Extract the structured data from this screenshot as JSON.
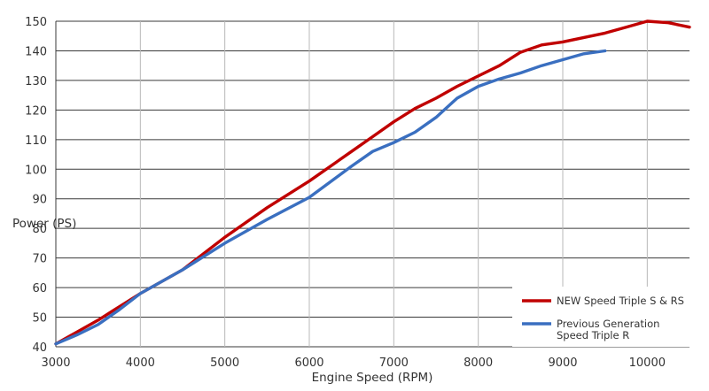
{
  "chart_data": {
    "type": "line",
    "title": "",
    "xlabel": "Engine Speed (RPM)",
    "ylabel": "Power (PS)",
    "xlim": [
      3000,
      10500
    ],
    "ylim": [
      40,
      150
    ],
    "xticks": [
      3000,
      4000,
      5000,
      6000,
      7000,
      8000,
      9000,
      10000
    ],
    "yticks": [
      40,
      50,
      60,
      70,
      80,
      90,
      100,
      110,
      120,
      130,
      140,
      150
    ],
    "grid": true,
    "legend_position": "bottom-right",
    "series": [
      {
        "name": "NEW Speed Triple S & RS",
        "color": "#c00000",
        "x": [
          3000,
          3250,
          3500,
          3750,
          4000,
          4500,
          5000,
          5500,
          6000,
          6500,
          6750,
          7000,
          7250,
          7500,
          7750,
          8000,
          8250,
          8500,
          8750,
          9000,
          9250,
          9500,
          9750,
          10000,
          10250,
          10500
        ],
        "y": [
          41,
          45,
          49,
          53.5,
          58,
          66,
          77,
          87,
          96,
          106,
          111,
          116,
          120.5,
          124,
          128,
          131.5,
          135,
          139.5,
          142,
          143,
          144.5,
          146,
          148,
          150,
          149.5,
          148
        ]
      },
      {
        "name": "Previous Generation Speed Triple R",
        "color": "#3a6fc0",
        "x": [
          3000,
          3250,
          3500,
          3750,
          4000,
          4500,
          5000,
          5500,
          6000,
          6500,
          6750,
          7000,
          7250,
          7500,
          7750,
          8000,
          8250,
          8500,
          8750,
          9000,
          9250,
          9500
        ],
        "y": [
          41,
          44,
          47.5,
          52.5,
          58,
          66,
          75,
          83,
          90.5,
          101,
          106,
          109,
          112.5,
          117.5,
          124,
          128,
          130.5,
          132.5,
          135,
          137,
          139,
          140
        ]
      }
    ]
  }
}
